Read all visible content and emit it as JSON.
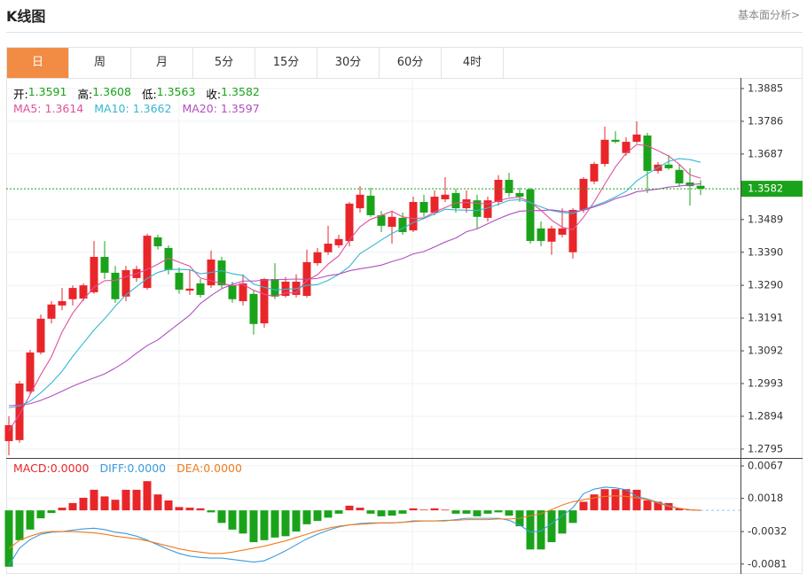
{
  "header": {
    "title": "K线图",
    "link": "基本面分析>"
  },
  "tabs": {
    "items": [
      "日",
      "周",
      "月",
      "5分",
      "15分",
      "30分",
      "60分",
      "4时"
    ],
    "active": 0
  },
  "chart_data": [
    {
      "type": "candlestick",
      "info": [
        {
          "label": "开:",
          "value": 1.3591
        },
        {
          "label": "高:",
          "value": 1.3608
        },
        {
          "label": "低:",
          "value": 1.3563
        },
        {
          "label": "收:",
          "value": 1.3582
        }
      ],
      "info_color": "#1aa31a",
      "open": [
        1.2819,
        1.2822,
        1.2969,
        1.3087,
        1.3189,
        1.3229,
        1.3248,
        1.325,
        1.3269,
        1.3376,
        1.3328,
        1.3256,
        1.3312,
        1.3282,
        1.3435,
        1.3403,
        1.3328,
        1.3274,
        1.3296,
        1.329,
        1.3365,
        1.329,
        1.3242,
        1.3264,
        1.3175,
        1.3309,
        1.3258,
        1.3261,
        1.3258,
        1.3357,
        1.339,
        1.3411,
        1.3424,
        1.3523,
        1.3561,
        1.3502,
        1.3467,
        1.3494,
        1.3456,
        1.3542,
        1.351,
        1.355,
        1.3569,
        1.3523,
        1.3547,
        1.3494,
        1.3542,
        1.3609,
        1.3569,
        1.358,
        1.3462,
        1.3422,
        1.3443,
        1.339,
        1.3518,
        1.3604,
        1.3657,
        1.373,
        1.369,
        1.3724,
        1.3743,
        1.3636,
        1.3655,
        1.3639,
        1.3601,
        1.3591
      ],
      "high": [
        1.2894,
        1.3001,
        1.3095,
        1.3202,
        1.3242,
        1.3282,
        1.329,
        1.3296,
        1.3424,
        1.3424,
        1.3349,
        1.3349,
        1.3349,
        1.3446,
        1.3443,
        1.3411,
        1.3344,
        1.3336,
        1.3309,
        1.3395,
        1.3376,
        1.3301,
        1.3323,
        1.3274,
        1.3312,
        1.3357,
        1.3315,
        1.3323,
        1.3398,
        1.3403,
        1.347,
        1.3443,
        1.3542,
        1.359,
        1.3585,
        1.3515,
        1.3515,
        1.351,
        1.3558,
        1.3564,
        1.3577,
        1.3617,
        1.3582,
        1.3577,
        1.3564,
        1.3558,
        1.3623,
        1.363,
        1.3585,
        1.3585,
        1.3483,
        1.347,
        1.3523,
        1.3523,
        1.3617,
        1.3663,
        1.377,
        1.3756,
        1.3738,
        1.3786,
        1.3751,
        1.3663,
        1.3684,
        1.3657,
        1.3644,
        1.3608
      ],
      "low": [
        1.2776,
        1.2814,
        1.2961,
        1.3081,
        1.3175,
        1.3215,
        1.3229,
        1.3242,
        1.3264,
        1.3309,
        1.3237,
        1.3242,
        1.3301,
        1.3277,
        1.3398,
        1.3323,
        1.3264,
        1.3261,
        1.3253,
        1.3282,
        1.3282,
        1.3237,
        1.3229,
        1.3141,
        1.3162,
        1.3248,
        1.3253,
        1.3253,
        1.3253,
        1.3349,
        1.3382,
        1.3403,
        1.3408,
        1.351,
        1.3497,
        1.3451,
        1.3416,
        1.3443,
        1.3451,
        1.3497,
        1.3502,
        1.3542,
        1.351,
        1.351,
        1.3462,
        1.3483,
        1.3531,
        1.3558,
        1.3542,
        1.3416,
        1.3408,
        1.3382,
        1.3435,
        1.3371,
        1.351,
        1.3596,
        1.3649,
        1.3719,
        1.3682,
        1.3719,
        1.3569,
        1.3628,
        1.3639,
        1.3588,
        1.3531,
        1.3563
      ],
      "close": [
        1.2867,
        1.2993,
        1.3087,
        1.3189,
        1.3232,
        1.3242,
        1.3282,
        1.329,
        1.3376,
        1.3328,
        1.3248,
        1.3336,
        1.3339,
        1.344,
        1.3408,
        1.3336,
        1.3277,
        1.328,
        1.3261,
        1.3368,
        1.329,
        1.3248,
        1.3296,
        1.3173,
        1.3309,
        1.3256,
        1.3301,
        1.3301,
        1.336,
        1.339,
        1.3416,
        1.343,
        1.3537,
        1.3564,
        1.3502,
        1.347,
        1.3497,
        1.3451,
        1.3542,
        1.351,
        1.3558,
        1.3564,
        1.3523,
        1.355,
        1.3497,
        1.3547,
        1.3609,
        1.3569,
        1.3558,
        1.3424,
        1.3424,
        1.3462,
        1.3462,
        1.3518,
        1.3612,
        1.3657,
        1.373,
        1.3724,
        1.3724,
        1.3746,
        1.3636,
        1.3655,
        1.3644,
        1.3598,
        1.359,
        1.3582
      ],
      "up_color": "#e8262a",
      "down_color": "#1aa31a",
      "series": [
        {
          "name": "MA5:",
          "value": 1.3614,
          "color": "#e0509a",
          "values": [
            1.285,
            1.29,
            1.296,
            1.302,
            1.3074,
            1.3149,
            1.3206,
            1.3247,
            1.3284,
            1.3304,
            1.3305,
            1.3316,
            1.3325,
            1.3338,
            1.3354,
            1.3372,
            1.336,
            1.3348,
            1.3312,
            1.3304,
            1.3295,
            1.3289,
            1.3293,
            1.3275,
            1.3263,
            1.3256,
            1.3267,
            1.3268,
            1.3305,
            1.3322,
            1.3354,
            1.3379,
            1.3427,
            1.3467,
            1.349,
            1.3501,
            1.3514,
            1.3497,
            1.3492,
            1.3494,
            1.3512,
            1.3525,
            1.3539,
            1.3541,
            1.3538,
            1.3536,
            1.3545,
            1.3554,
            1.3556,
            1.3541,
            1.3517,
            1.3487,
            1.3466,
            1.3458,
            1.3496,
            1.3542,
            1.3596,
            1.3648,
            1.3689,
            1.3716,
            1.3712,
            1.3697,
            1.3681,
            1.3656,
            1.3624,
            1.3614
          ]
        },
        {
          "name": "MA10:",
          "value": 1.3662,
          "color": "#35b7d3",
          "values": [
            1.292,
            1.2925,
            1.294,
            1.2965,
            1.2995,
            1.303,
            1.3075,
            1.3115,
            1.3155,
            1.3189,
            1.3227,
            1.3261,
            1.3286,
            1.3311,
            1.3329,
            1.3338,
            1.3338,
            1.3337,
            1.3325,
            1.3329,
            1.3334,
            1.3325,
            1.332,
            1.3294,
            1.3284,
            1.3276,
            1.3278,
            1.328,
            1.329,
            1.3292,
            1.3305,
            1.3323,
            1.3347,
            1.3386,
            1.3406,
            1.3427,
            1.3447,
            1.3462,
            1.348,
            1.3492,
            1.3506,
            1.352,
            1.3518,
            1.3517,
            1.3516,
            1.3524,
            1.3535,
            1.3547,
            1.3549,
            1.354,
            1.3527,
            1.3516,
            1.351,
            1.3507,
            1.3519,
            1.353,
            1.3542,
            1.3557,
            1.3574,
            1.3606,
            1.3627,
            1.3646,
            1.3665,
            1.3673,
            1.367,
            1.3662
          ]
        },
        {
          "name": "MA20:",
          "value": 1.3597,
          "color": "#b04fc0",
          "values": [
            1.2926,
            1.2928,
            1.2932,
            1.2942,
            1.2955,
            1.297,
            1.2985,
            1.2998,
            1.301,
            1.3022,
            1.304,
            1.306,
            1.3085,
            1.3108,
            1.3125,
            1.315,
            1.3175,
            1.32,
            1.3235,
            1.3259,
            1.328,
            1.3293,
            1.3303,
            1.3303,
            1.3306,
            1.3307,
            1.3308,
            1.3309,
            1.3308,
            1.3311,
            1.3319,
            1.3324,
            1.3334,
            1.334,
            1.3345,
            1.3351,
            1.3362,
            1.3371,
            1.3385,
            1.3392,
            1.3406,
            1.3421,
            1.3433,
            1.3452,
            1.3461,
            1.3476,
            1.3491,
            1.3504,
            1.3514,
            1.3516,
            1.3516,
            1.3518,
            1.3514,
            1.3512,
            1.3517,
            1.3527,
            1.3538,
            1.3552,
            1.3561,
            1.3573,
            1.3577,
            1.3581,
            1.3587,
            1.359,
            1.3594,
            1.3597
          ]
        }
      ],
      "last_price": 1.3582,
      "ylim": [
        1.2768,
        1.3917
      ],
      "yticks": [
        1.3885,
        1.3786,
        1.3687,
        1.3489,
        {
          "value": 1.339,
          "label": "1.3390"
        },
        {
          "value": 1.329,
          "label": "1.3290"
        },
        1.3191,
        1.3092,
        1.2993,
        1.2894,
        1.2795
      ],
      "grid": true
    },
    {
      "type": "macd",
      "legend": [
        {
          "name": "MACD:",
          "value": 0,
          "value_label": "0.0000",
          "color": "#e8262a"
        },
        {
          "name": "DIFF:",
          "value": 0,
          "value_label": "0.0000",
          "color": "#3b9be0"
        },
        {
          "name": "DEA:",
          "value": 0,
          "value_label": "0.0000",
          "color": "#f07c1e"
        }
      ],
      "histogram": [
        -0.0085,
        -0.0045,
        -0.0029,
        -0.0012,
        -0.0004,
        0.0004,
        0.0011,
        0.0019,
        0.0031,
        0.0021,
        0.0016,
        0.0031,
        0.0031,
        0.0044,
        0.0024,
        0.0015,
        0.0005,
        0.0004,
        0.0003,
        -0.0003,
        -0.0019,
        -0.0029,
        -0.0035,
        -0.0048,
        -0.0045,
        -0.0041,
        -0.0039,
        -0.0032,
        -0.0021,
        -0.0016,
        -0.0011,
        -0.0005,
        0.0007,
        0.0004,
        -0.0005,
        -0.0009,
        -0.0008,
        -0.0005,
        0.0003,
        0.0001,
        0.0003,
        0.0001,
        -0.0005,
        -0.0005,
        -0.0009,
        -0.0005,
        -0.0003,
        -0.0008,
        -0.0024,
        -0.0059,
        -0.0059,
        -0.0048,
        -0.0035,
        -0.0019,
        0.0013,
        0.0024,
        0.0032,
        0.0032,
        0.0032,
        0.0031,
        0.0015,
        0.0013,
        0.0011,
        0.0003,
        0.0001,
        0
      ],
      "up_color": "#e8262a",
      "down_color": "#1aa31a",
      "lines": [
        {
          "color": "#3b9be0",
          "values": [
            -0.0083,
            -0.0057,
            -0.0044,
            -0.0036,
            -0.0033,
            -0.0032,
            -0.003,
            -0.0028,
            -0.0027,
            -0.0029,
            -0.0033,
            -0.0035,
            -0.0039,
            -0.0045,
            -0.0052,
            -0.0059,
            -0.0065,
            -0.0069,
            -0.0071,
            -0.0072,
            -0.0072,
            -0.0074,
            -0.0076,
            -0.0078,
            -0.0076,
            -0.0069,
            -0.0061,
            -0.0052,
            -0.0043,
            -0.0036,
            -0.003,
            -0.0025,
            -0.0022,
            -0.002,
            -0.0019,
            -0.0019,
            -0.0019,
            -0.0018,
            -0.0016,
            -0.0016,
            -0.0016,
            -0.0016,
            -0.0014,
            -0.0012,
            -0.0012,
            -0.0012,
            -0.0012,
            -0.0015,
            -0.0022,
            -0.0033,
            -0.0031,
            -0.002,
            -0.0008,
            0.0004,
            0.0025,
            0.0032,
            0.0035,
            0.0034,
            0.0031,
            0.0021,
            0.0017,
            0.0012,
            0.0007,
            0.0003,
            0.0001,
            0
          ]
        },
        {
          "color": "#f07c1e",
          "values": [
            -0.0058,
            -0.0045,
            -0.0039,
            -0.0034,
            -0.0032,
            -0.0032,
            -0.0032,
            -0.0033,
            -0.0034,
            -0.0036,
            -0.0039,
            -0.0041,
            -0.0043,
            -0.0046,
            -0.005,
            -0.0054,
            -0.0058,
            -0.0061,
            -0.0063,
            -0.0065,
            -0.0065,
            -0.0063,
            -0.006,
            -0.0057,
            -0.0054,
            -0.005,
            -0.0046,
            -0.0041,
            -0.0036,
            -0.0031,
            -0.0027,
            -0.0024,
            -0.0022,
            -0.0021,
            -0.002,
            -0.0019,
            -0.0019,
            -0.0018,
            -0.0017,
            -0.0016,
            -0.0016,
            -0.0015,
            -0.0015,
            -0.0014,
            -0.0014,
            -0.0014,
            -0.0013,
            -0.0013,
            -0.0012,
            -0.0008,
            -0.0005,
            0.0001,
            0.0008,
            0.0013,
            0.0016,
            0.0019,
            0.0021,
            0.0022,
            0.0021,
            0.0019,
            0.0016,
            0.0011,
            0.0006,
            0.0003,
            0.0001,
            0
          ]
        }
      ],
      "ylim": [
        -0.0096,
        0.0079
      ],
      "yticks": [
        0.0067,
        0.0018,
        -0.0032,
        -0.0081
      ],
      "grid": true
    }
  ]
}
